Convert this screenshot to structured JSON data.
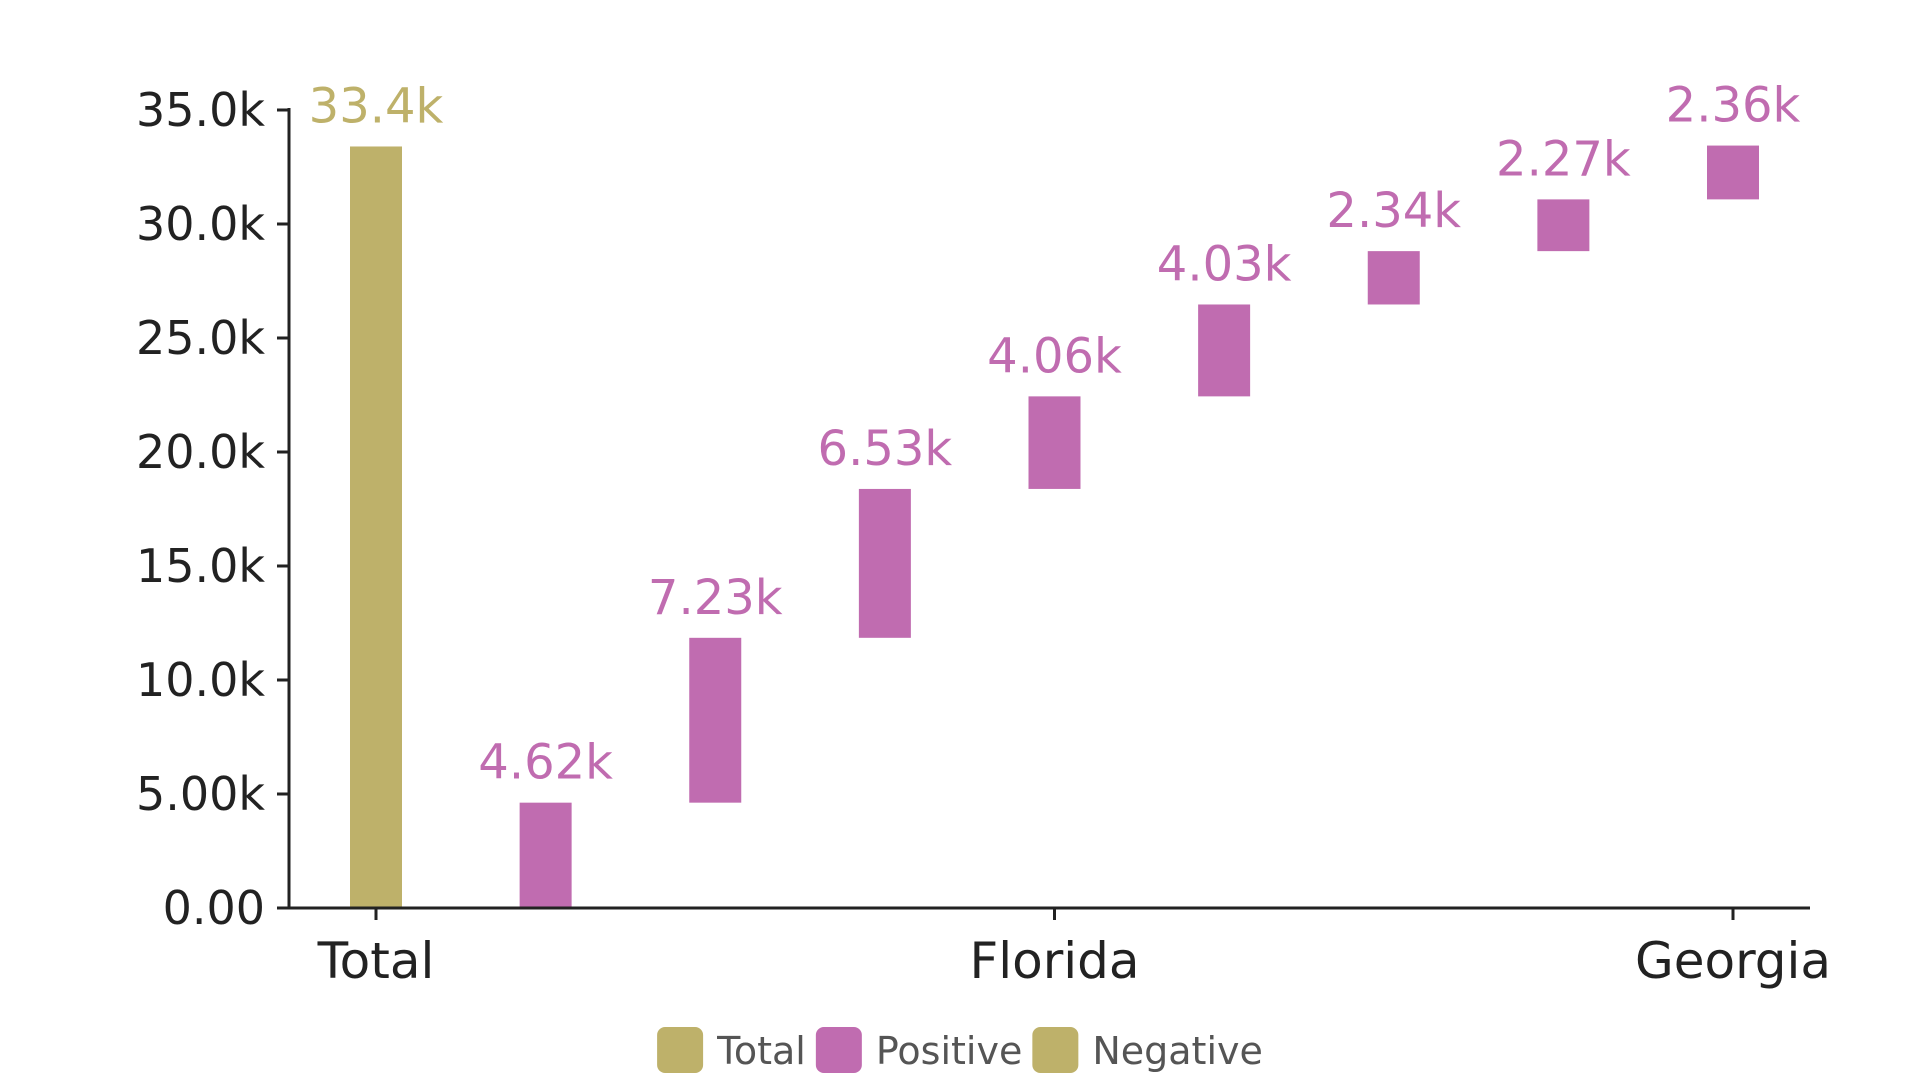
{
  "colors": {
    "total": "#beb16a",
    "positive": "#c06cb0",
    "negative": "#beb16a",
    "axis": "#222222",
    "tick_text": "#222222",
    "legend_text": "#555555"
  },
  "chart_data": {
    "type": "bar",
    "subtype": "waterfall",
    "categories": [
      "Total",
      "",
      "",
      "",
      "Florida",
      "",
      "",
      "",
      "Georgia"
    ],
    "x_tick_labels": [
      "Total",
      "Florida",
      "Georgia"
    ],
    "bars": [
      {
        "kind": "total",
        "start": 0,
        "end": 33400,
        "label": "33.4k"
      },
      {
        "kind": "positive",
        "start": 0,
        "end": 4620,
        "label": "4.62k"
      },
      {
        "kind": "positive",
        "start": 4620,
        "end": 11850,
        "label": "7.23k"
      },
      {
        "kind": "positive",
        "start": 11850,
        "end": 18380,
        "label": "6.53k"
      },
      {
        "kind": "positive",
        "start": 18380,
        "end": 22440,
        "label": "4.06k"
      },
      {
        "kind": "positive",
        "start": 22440,
        "end": 26470,
        "label": "4.03k"
      },
      {
        "kind": "positive",
        "start": 26470,
        "end": 28810,
        "label": "2.34k"
      },
      {
        "kind": "positive",
        "start": 28810,
        "end": 31080,
        "label": "2.27k"
      },
      {
        "kind": "positive",
        "start": 31080,
        "end": 33440,
        "label": "2.36k"
      }
    ],
    "y_ticks": [
      0,
      5000,
      10000,
      15000,
      20000,
      25000,
      30000,
      35000
    ],
    "y_tick_labels": [
      "0.00",
      "5.00k",
      "10.0k",
      "15.0k",
      "20.0k",
      "25.0k",
      "30.0k",
      "35.0k"
    ],
    "ylim": [
      0,
      35000
    ],
    "grid": false,
    "legend": {
      "placement": "bottom",
      "entries": [
        {
          "name": "Total",
          "kind": "total"
        },
        {
          "name": "Positive",
          "kind": "positive"
        },
        {
          "name": "Negative",
          "kind": "negative"
        }
      ]
    },
    "title": "",
    "xlabel": "",
    "ylabel": ""
  }
}
